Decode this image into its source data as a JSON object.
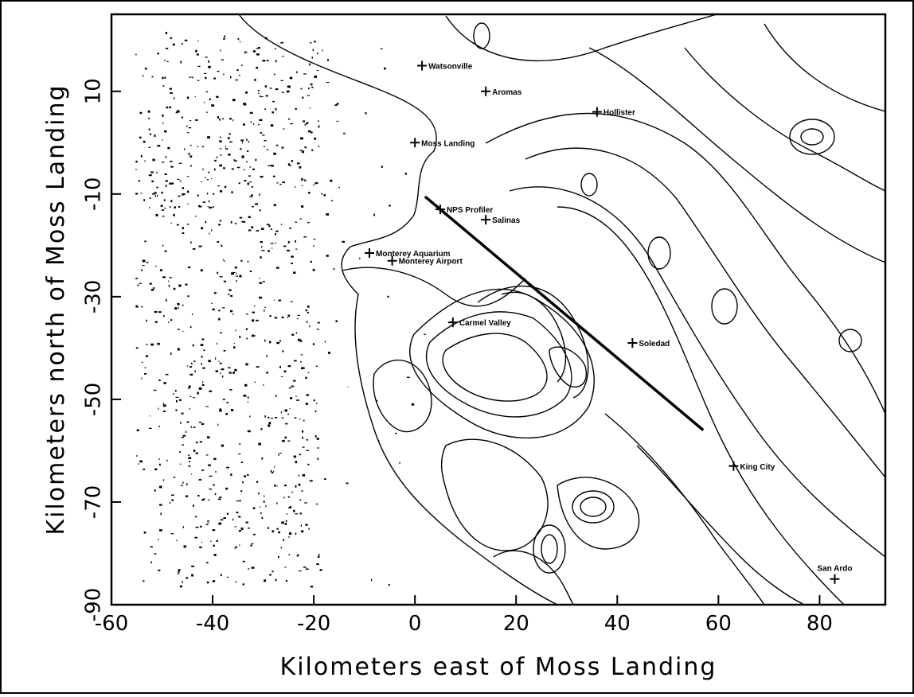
{
  "chart_data": {
    "type": "contour",
    "xlabel": "Kilometers east of Moss Landing",
    "ylabel": "Kilometers north of Moss Landing",
    "xlim": [
      -60,
      93
    ],
    "ylim": [
      -90,
      25
    ],
    "xticks": [
      -60,
      -40,
      -20,
      0,
      20,
      40,
      60,
      80
    ],
    "yticks": [
      -90,
      -70,
      -50,
      -30,
      -10,
      10
    ],
    "places": [
      {
        "name": "Watsonville",
        "x": 1.4,
        "y": 15
      },
      {
        "name": "Aromas",
        "x": 14,
        "y": 10
      },
      {
        "name": "Hollister",
        "x": 36,
        "y": 6
      },
      {
        "name": "Moss Landing",
        "x": 0,
        "y": 0
      },
      {
        "name": "NPS Profiler",
        "x": 5,
        "y": -13
      },
      {
        "name": "Salinas",
        "x": 14,
        "y": -15
      },
      {
        "name": "Monterey Aquarium",
        "x": -9,
        "y": -21.5
      },
      {
        "name": "Monterey Airport",
        "x": -4.5,
        "y": -23
      },
      {
        "name": "Carmel Valley",
        "x": 7.5,
        "y": -35
      },
      {
        "name": "Soledad",
        "x": 43,
        "y": -39
      },
      {
        "name": "King City",
        "x": 63,
        "y": -63
      },
      {
        "name": "San Ardo",
        "x": 83,
        "y": -85
      }
    ],
    "segment": {
      "x": [
        2,
        57
      ],
      "y": [
        -10.5,
        -56
      ]
    }
  }
}
